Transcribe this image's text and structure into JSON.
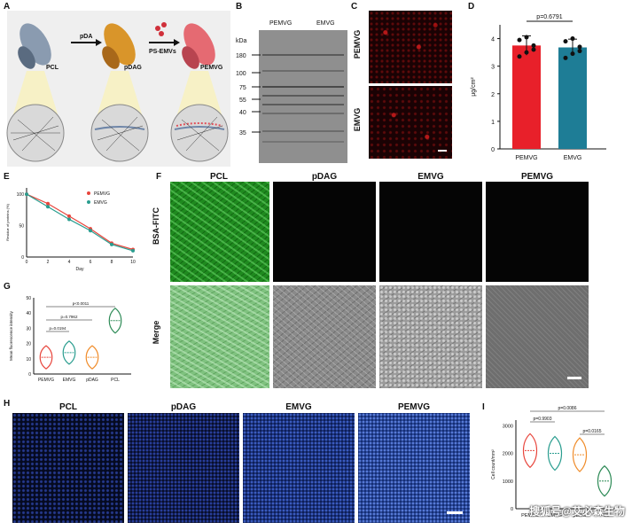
{
  "panels": {
    "A": {
      "label": "A",
      "steps": [
        "PCL",
        "pDA",
        "pDAG",
        "PS-EMVs",
        "PEMVG"
      ]
    },
    "B": {
      "label": "B",
      "lanes": [
        "PEMVG",
        "EMVG"
      ],
      "kda_title": "kDa",
      "markers": [
        "180",
        "100",
        "75",
        "55",
        "40",
        "35"
      ]
    },
    "C": {
      "label": "C",
      "rows": [
        "PEMVG",
        "EMVG"
      ]
    },
    "D": {
      "label": "D"
    },
    "E": {
      "label": "E"
    },
    "F": {
      "label": "F",
      "columns": [
        "PCL",
        "pDAG",
        "EMVG",
        "PEMVG"
      ],
      "rows": [
        "BSA-FITC",
        "Merge"
      ]
    },
    "G": {
      "label": "G"
    },
    "H": {
      "label": "H",
      "columns": [
        "PCL",
        "pDAG",
        "EMVG",
        "PEMVG"
      ]
    },
    "I": {
      "label": "I"
    }
  },
  "chart_data": [
    {
      "id": "D",
      "type": "bar",
      "categories": [
        "PEMVG",
        "EMVG"
      ],
      "values": [
        3.75,
        3.68
      ],
      "errors": [
        0.35,
        0.3
      ],
      "points": [
        [
          3.35,
          3.5,
          3.75,
          3.95,
          4.05,
          3.6
        ],
        [
          3.3,
          3.45,
          3.7,
          3.9,
          4.0,
          3.55
        ]
      ],
      "colors": [
        "#e8202a",
        "#1e7d96"
      ],
      "ylabel": "μg/cm²",
      "yticks": [
        "0",
        "1",
        "2",
        "3",
        "4"
      ],
      "ylim": [
        0,
        4.5
      ],
      "annotation": "p=0.6791"
    },
    {
      "id": "E",
      "type": "line",
      "x": [
        0,
        2,
        4,
        6,
        8,
        10
      ],
      "series": [
        {
          "name": "PEMVG",
          "values": [
            100,
            85,
            65,
            45,
            22,
            12
          ],
          "color": "#e8453c"
        },
        {
          "name": "EMVG",
          "values": [
            100,
            80,
            60,
            42,
            20,
            10
          ],
          "color": "#2a9d8f"
        }
      ],
      "xlabel": "Day",
      "ylabel": "Residue of proteins (%)",
      "xticks": [
        "0",
        "2",
        "4",
        "6",
        "8",
        "10"
      ],
      "yticks": [
        "0",
        "50",
        "100"
      ],
      "legend": [
        "PEMVG",
        "EMVG"
      ]
    },
    {
      "id": "G",
      "type": "violin",
      "categories": [
        "PEMVG",
        "EMVG",
        "pDAG",
        "PCL"
      ],
      "medians": [
        11,
        14,
        11,
        35
      ],
      "colors": [
        "#e8453c",
        "#2a9d8f",
        "#f08c2a",
        "#2e8b57"
      ],
      "ylabel": "Mean fluorescence intensity",
      "yticks": [
        "0",
        "10",
        "20",
        "30",
        "40",
        "50"
      ],
      "ylim": [
        0,
        50
      ],
      "annotations": [
        "p=0.0194",
        "p=0.7962",
        "p<0.0011"
      ]
    },
    {
      "id": "I",
      "type": "violin",
      "categories": [
        "PEMVG",
        "EMVG",
        "pDAG",
        "PCL"
      ],
      "medians": [
        2100,
        2000,
        1950,
        1000
      ],
      "colors": [
        "#e8453c",
        "#2a9d8f",
        "#f08c2a",
        "#2e8b57"
      ],
      "ylabel": "Cell count/mm²",
      "yticks": [
        "0",
        "1000",
        "2000",
        "3000"
      ],
      "ylim": [
        0,
        3200
      ],
      "annotations": [
        "p=0.0086",
        "p=0.9903",
        "p=0.0165"
      ]
    }
  ],
  "watermark": "搜狐号@艾必森生物"
}
